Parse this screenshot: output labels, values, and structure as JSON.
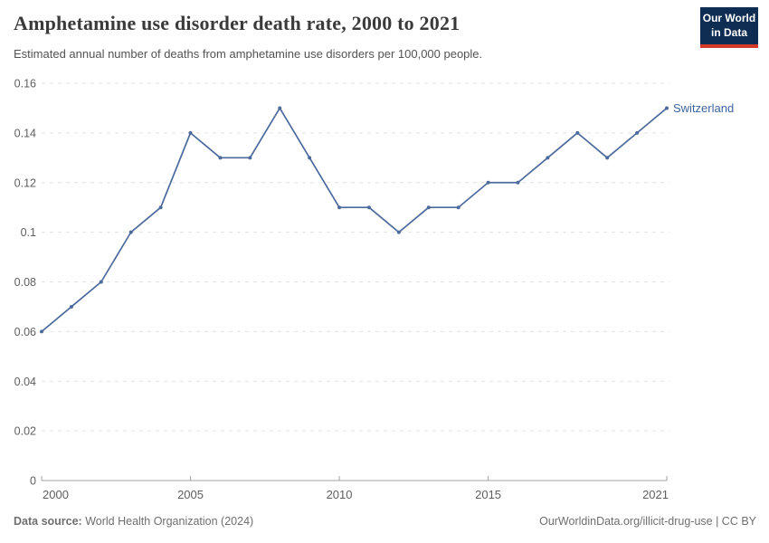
{
  "header": {
    "title": "Amphetamine use disorder death rate, 2000 to 2021",
    "subtitle": "Estimated annual number of deaths from amphetamine use disorders per 100,000 people.",
    "logo": {
      "line1": "Our World",
      "line2": "in Data"
    }
  },
  "chart_data": {
    "type": "line",
    "title": "Amphetamine use disorder death rate, 2000 to 2021",
    "xlabel": "",
    "ylabel": "Estimated annual deaths from amphetamine use disorders per 100,000 people",
    "x": [
      2000,
      2001,
      2002,
      2003,
      2004,
      2005,
      2006,
      2007,
      2008,
      2009,
      2010,
      2011,
      2012,
      2013,
      2014,
      2015,
      2016,
      2017,
      2018,
      2019,
      2020,
      2021
    ],
    "series": [
      {
        "name": "Switzerland",
        "color": "#4C6A9C",
        "values": [
          0.06,
          0.07,
          0.08,
          0.1,
          0.11,
          0.14,
          0.13,
          0.13,
          0.15,
          0.13,
          0.11,
          0.11,
          0.1,
          0.11,
          0.11,
          0.12,
          0.12,
          0.13,
          0.14,
          0.13,
          0.14,
          0.15
        ]
      }
    ],
    "ylim": [
      0,
      0.16
    ],
    "yticks": [
      0,
      0.02,
      0.04,
      0.06,
      0.08,
      0.1,
      0.12,
      0.14,
      0.16
    ],
    "ytick_labels": [
      "0",
      "0.02",
      "0.04",
      "0.06",
      "0.08",
      "0.1",
      "0.12",
      "0.14",
      "0.16"
    ],
    "xticks": [
      2000,
      2005,
      2010,
      2015,
      2021
    ],
    "xtick_labels": [
      "2000",
      "2005",
      "2010",
      "2015",
      "2021"
    ],
    "grid": "horizontal-dashed",
    "legend_position": "end-of-line-label"
  },
  "footer": {
    "source_label": "Data source:",
    "source_value": " World Health Organization (2024)",
    "link": "OurWorldinData.org/illicit-drug-use | CC BY"
  },
  "colors": {
    "line": "#4C6A9C",
    "entity_label": "#3d649e",
    "gridline": "#e2e2e2",
    "axis": "#a2a2a2",
    "tick_label": "#5f5f5f",
    "logo_bg": "#0f2d52",
    "logo_accent": "#d23b27"
  }
}
